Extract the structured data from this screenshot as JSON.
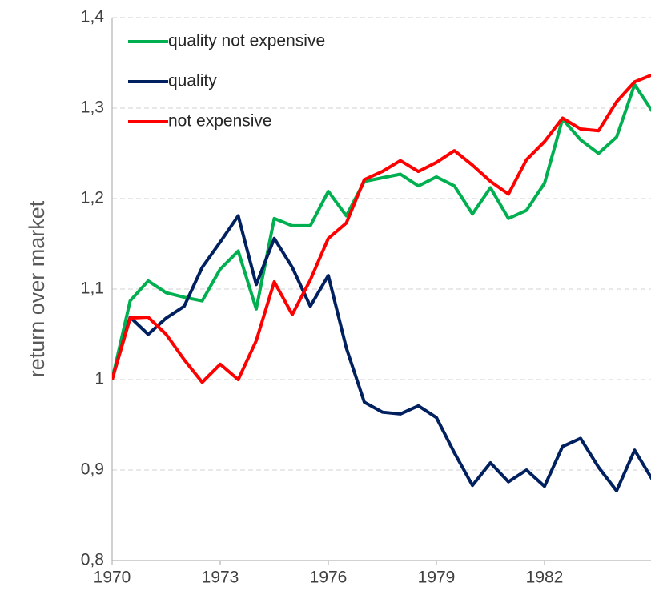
{
  "chart_data": {
    "type": "line",
    "y_label": "return over market",
    "x": [
      1970,
      1970.5,
      1971,
      1971.5,
      1972,
      1972.5,
      1973,
      1973.5,
      1974,
      1974.5,
      1975,
      1975.5,
      1976,
      1976.5,
      1977,
      1977.5,
      1978,
      1978.5,
      1979,
      1979.5,
      1980,
      1980.5,
      1981,
      1981.5,
      1982,
      1982.5,
      1983,
      1983.5,
      1984,
      1984.5,
      1985
    ],
    "series": [
      {
        "name": "quality not expensive",
        "color": "#00b050",
        "values": [
          1.0,
          1.087,
          1.109,
          1.096,
          1.091,
          1.087,
          1.122,
          1.142,
          1.078,
          1.178,
          1.17,
          1.17,
          1.208,
          1.181,
          1.219,
          1.223,
          1.227,
          1.214,
          1.224,
          1.214,
          1.183,
          1.212,
          1.178,
          1.187,
          1.217,
          1.288,
          1.265,
          1.25,
          1.268,
          1.326,
          1.296
        ]
      },
      {
        "name": "quality",
        "color": "#002060",
        "values": [
          1.0,
          1.069,
          1.05,
          1.068,
          1.081,
          1.124,
          1.152,
          1.181,
          1.105,
          1.156,
          1.124,
          1.081,
          1.115,
          1.035,
          0.975,
          0.964,
          0.962,
          0.971,
          0.958,
          0.919,
          0.883,
          0.908,
          0.887,
          0.9,
          0.882,
          0.926,
          0.935,
          0.903,
          0.877,
          0.922,
          0.889
        ]
      },
      {
        "name": "not expensive",
        "color": "#ff0000",
        "values": [
          1.0,
          1.068,
          1.069,
          1.05,
          1.022,
          0.997,
          1.017,
          1.0,
          1.043,
          1.108,
          1.072,
          1.11,
          1.156,
          1.173,
          1.221,
          1.23,
          1.242,
          1.23,
          1.24,
          1.253,
          1.237,
          1.219,
          1.205,
          1.243,
          1.263,
          1.289,
          1.277,
          1.275,
          1.307,
          1.329,
          1.337
        ]
      }
    ],
    "xlim": [
      1970,
      1985
    ],
    "xticks": [
      1970,
      1973,
      1976,
      1979,
      1982
    ],
    "ylim": [
      0.8,
      1.4
    ],
    "yticks": [
      {
        "value": 0.8,
        "label": "0,8"
      },
      {
        "value": 0.9,
        "label": "0,9"
      },
      {
        "value": 1,
        "label": "1"
      },
      {
        "value": 1.1,
        "label": "1,1"
      },
      {
        "value": 1.2,
        "label": "1,2"
      },
      {
        "value": 1.3,
        "label": "1,3"
      },
      {
        "value": 1.4,
        "label": "1,4"
      }
    ],
    "grid": true,
    "legend": "upper left"
  }
}
